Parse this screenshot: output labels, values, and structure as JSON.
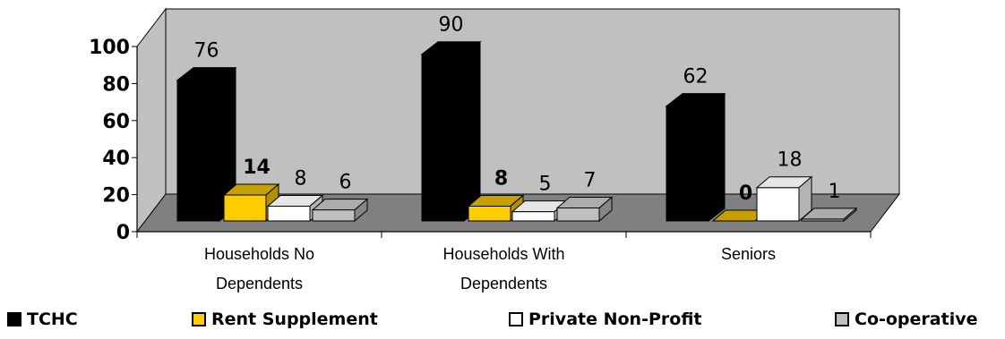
{
  "chart_data": {
    "type": "bar",
    "categories": [
      "Households No Dependents",
      "Households With Dependents",
      "Seniors"
    ],
    "series": [
      {
        "name": "TCHC",
        "values": [
          76,
          90,
          62
        ],
        "color": "#000000",
        "label_bold": false
      },
      {
        "name": "Rent Supplement",
        "values": [
          14,
          8,
          0
        ],
        "color": "#FFCC00",
        "label_bold": true
      },
      {
        "name": "Private Non-Profit",
        "values": [
          8,
          5,
          18
        ],
        "color": "#FFFFFF",
        "label_bold": false
      },
      {
        "name": "Co-operative",
        "values": [
          6,
          7,
          1
        ],
        "color": "#BFBFBF",
        "label_bold": false
      }
    ],
    "ylim": [
      0,
      100
    ],
    "yticks": [
      0,
      20,
      40,
      60,
      80,
      100
    ],
    "grid": false,
    "legend_position": "bottom",
    "colors": {
      "wall": "#C0C0C0",
      "floor": "#808080"
    }
  }
}
